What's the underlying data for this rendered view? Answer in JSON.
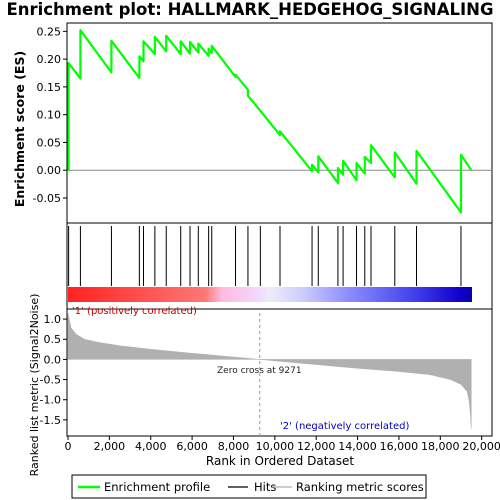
{
  "chart_data": {
    "type": "line",
    "title": "Enrichment plot: HALLMARK_HEDGEHOG_SIGNALING",
    "xlabel": "Rank in Ordered Dataset",
    "ylabel_top": "Enrichment score (ES)",
    "ylabel_bottom": "Ranked list metric (Signal2Noise)",
    "xlim": [
      0,
      20500
    ],
    "xticks": [
      0,
      2000,
      4000,
      6000,
      8000,
      10000,
      12000,
      14000,
      16000,
      18000,
      20000
    ],
    "xtick_labels": [
      "0",
      "2,000",
      "4,000",
      "6,000",
      "8,000",
      "10,000",
      "12,000",
      "14,000",
      "16,000",
      "18,000",
      "20,000"
    ],
    "es_ylim": [
      -0.095,
      0.265
    ],
    "es_yticks": [
      -0.05,
      0.0,
      0.05,
      0.1,
      0.15,
      0.2,
      0.25
    ],
    "es_ytick_labels": [
      "-0.05",
      "0.00",
      "0.05",
      "0.10",
      "0.15",
      "0.20",
      "0.25"
    ],
    "metric_ylim": [
      -1.9,
      1.25
    ],
    "metric_yticks": [
      -1.5,
      -1.0,
      -0.5,
      0.0,
      0.5,
      1.0
    ],
    "metric_ytick_labels": [
      "-1.5",
      "-1.0",
      "-0.5",
      "0.0",
      "0.5",
      "1.0"
    ],
    "hits": [
      30,
      600,
      2100,
      3450,
      3650,
      4200,
      4750,
      5450,
      5900,
      6300,
      6800,
      6950,
      8100,
      8700,
      9300,
      10250,
      11800,
      12100,
      13050,
      13300,
      13950,
      14350,
      14650,
      15800,
      16850,
      19000
    ],
    "es_profile": {
      "x": [
        0,
        30,
        30,
        600,
        600,
        2100,
        2100,
        3450,
        3450,
        3650,
        3650,
        4200,
        4200,
        4750,
        4750,
        5450,
        5450,
        5900,
        5900,
        6300,
        6300,
        6800,
        6800,
        6950,
        6950,
        8100,
        8100,
        8700,
        8700,
        9300,
        9300,
        10250,
        10250,
        11800,
        11800,
        12100,
        12100,
        13050,
        13050,
        13300,
        13300,
        13950,
        13950,
        14350,
        14350,
        14650,
        14650,
        15800,
        15800,
        16850,
        16850,
        19000,
        19000,
        19500
      ],
      "y": [
        0.0,
        0.0,
        0.193,
        0.165,
        0.252,
        0.176,
        0.233,
        0.166,
        0.205,
        0.196,
        0.232,
        0.209,
        0.24,
        0.214,
        0.242,
        0.209,
        0.232,
        0.21,
        0.231,
        0.212,
        0.228,
        0.206,
        0.219,
        0.211,
        0.224,
        0.168,
        0.172,
        0.145,
        0.134,
        0.107,
        0.107,
        0.063,
        0.07,
        -0.002,
        0.01,
        -0.004,
        0.025,
        -0.023,
        0.004,
        -0.008,
        0.017,
        -0.018,
        0.013,
        -0.006,
        0.024,
        0.013,
        0.045,
        -0.013,
        0.032,
        -0.024,
        0.035,
        -0.076,
        0.028,
        0.0
      ]
    },
    "metric_profile": {
      "x": [
        0,
        150,
        400,
        800,
        1500,
        2500,
        4000,
        6000,
        8000,
        9271,
        10500,
        12000,
        14000,
        16000,
        17500,
        18500,
        19000,
        19300,
        19400,
        19450,
        19500
      ],
      "y": [
        1.15,
        0.78,
        0.62,
        0.5,
        0.42,
        0.34,
        0.25,
        0.15,
        0.06,
        0.0,
        -0.06,
        -0.13,
        -0.22,
        -0.3,
        -0.38,
        -0.5,
        -0.62,
        -0.8,
        -1.05,
        -1.35,
        -1.72
      ]
    },
    "zero_cross_label": "Zero cross at 9271",
    "zero_cross_x": 9271,
    "pos_label": "'1' (positively correlated)",
    "neg_label": "'2' (negatively correlated)",
    "colors": {
      "profile": "#00ff00",
      "hits": "#000000",
      "metric": "#b0b0b0",
      "pos_label": "#c00000",
      "neg_label": "#0000c0"
    },
    "legend": {
      "placement": "bottom",
      "items": [
        {
          "label": "Enrichment profile",
          "color": "#00ff00",
          "kind": "line"
        },
        {
          "label": "Hits",
          "color": "#000000",
          "kind": "line"
        },
        {
          "label": "Ranking metric scores",
          "color": "#b0b0b0",
          "kind": "line"
        }
      ]
    }
  }
}
